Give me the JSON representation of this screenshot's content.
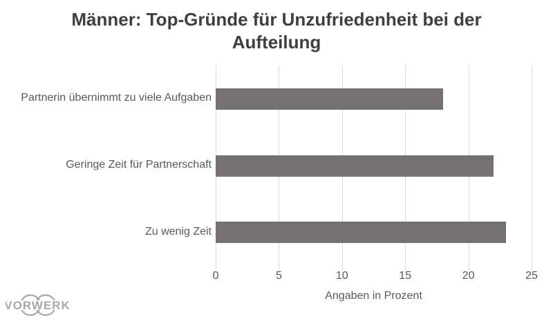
{
  "chart_data": {
    "type": "bar",
    "orientation": "horizontal",
    "title": "Männer: Top-Gründe für Unzufriedenheit bei der Aufteilung",
    "categories": [
      "Partnerin übernimmt zu viele Aufgaben",
      "Geringe Zeit für Partnerschaft",
      "Zu wenig Zeit"
    ],
    "values": [
      18,
      22,
      23
    ],
    "xlabel": "Angaben in Prozent",
    "xlim": [
      0,
      25
    ],
    "xticks": [
      0,
      5,
      10,
      15,
      20,
      25
    ],
    "grid": true,
    "legend": "none",
    "bar_color": "#767171",
    "gridline_color": "#d9d9d9",
    "title_color": "#3f3f3f",
    "axis_text_color": "#595959"
  },
  "branding": {
    "logo_text": "VORWERK",
    "logo_color": "#a8a8a8"
  }
}
